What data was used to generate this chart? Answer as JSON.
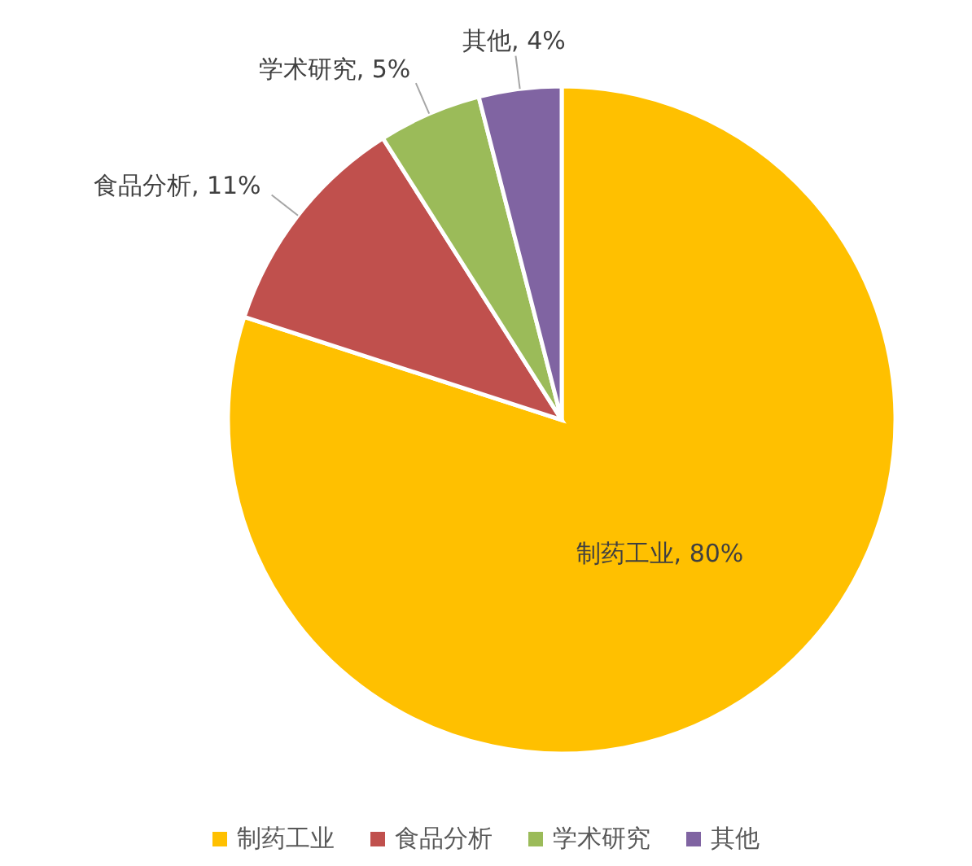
{
  "chart_data": {
    "type": "pie",
    "categories": [
      "制药工业",
      "食品分析",
      "学术研究",
      "其他"
    ],
    "values": [
      80,
      11,
      5,
      4
    ],
    "colors": [
      "#ffc000",
      "#c0504d",
      "#9bbb59",
      "#8064a2"
    ],
    "value_labels": [
      "制药工业, 80%",
      "食品分析, 11%",
      "学术研究, 5%",
      "其他, 4%"
    ],
    "legend": "bottom"
  }
}
